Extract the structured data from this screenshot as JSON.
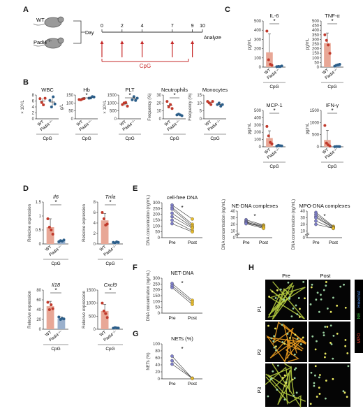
{
  "panel_letters": [
    "A",
    "B",
    "C",
    "D",
    "E",
    "F",
    "G",
    "H"
  ],
  "panelA": {
    "mouse_labels": [
      "WT",
      "Padi4",
      "−/−"
    ],
    "day_label": "Day",
    "days": [
      0,
      2,
      4,
      7,
      9,
      10
    ],
    "analyze_label": "Analyze",
    "treatment": "CpG"
  },
  "group_labels": {
    "wt": "WT",
    "ko": "Padi4",
    "ko_sup": "−/−",
    "treatment": "CpG"
  },
  "sig_mark": "*",
  "colors": {
    "wt": "#e8a796",
    "wt_dot": "#c0392b",
    "ko": "#2d5f8a",
    "ko_bar": "#9ab0cc",
    "pre": "#7d7ec8",
    "post": "#e8bc2a",
    "cpg": "#c62828"
  },
  "chart_data": [
    {
      "id": "B-WBC",
      "type": "scatter",
      "title": "WBC",
      "ylabel": "× 10⁹/L",
      "ylim": [
        0,
        8
      ],
      "yticks": [
        0,
        2,
        4,
        6,
        8
      ],
      "series": [
        {
          "name": "WT",
          "values": [
            6.8,
            5.5,
            4.7,
            6.9
          ]
        },
        {
          "name": "Padi4−/−",
          "values": [
            6.2,
            4.0,
            7.4,
            5.0
          ]
        }
      ]
    },
    {
      "id": "B-Hb",
      "type": "scatter",
      "title": "Hb",
      "ylabel": "g/L",
      "ylim": [
        0,
        150
      ],
      "yticks": [
        0,
        50,
        100,
        150
      ],
      "series": [
        {
          "name": "WT",
          "values": [
            122,
            120,
            125,
            128
          ]
        },
        {
          "name": "Padi4−/−",
          "values": [
            130,
            132,
            140,
            138
          ]
        }
      ]
    },
    {
      "id": "B-PLT",
      "type": "scatter",
      "title": "PLT",
      "ylabel": "× 10⁹/L",
      "ylim": [
        0,
        1500
      ],
      "yticks": [
        0,
        500,
        1000,
        1500
      ],
      "series": [
        {
          "name": "WT",
          "values": [
            900,
            1000,
            1030,
            800
          ]
        },
        {
          "name": "Padi4−/−",
          "values": [
            1200,
            1400,
            1160,
            1300
          ]
        }
      ]
    },
    {
      "id": "B-Neutrophils",
      "type": "scatter",
      "title": "Neutrophils",
      "ylabel": "Frequency (%)",
      "ylim": [
        0,
        30
      ],
      "yticks": [
        0,
        10,
        20,
        30
      ],
      "series": [
        {
          "name": "WT",
          "values": [
            22,
            15,
            18,
            13
          ]
        },
        {
          "name": "Padi4−/−",
          "values": [
            5,
            6,
            5,
            4
          ]
        }
      ]
    },
    {
      "id": "B-Monocytes",
      "type": "scatter",
      "title": "Monocytes",
      "ylabel": "Frequency (%)",
      "ylim": [
        0,
        15
      ],
      "yticks": [
        0,
        5,
        10,
        15
      ],
      "series": [
        {
          "name": "WT",
          "values": [
            11,
            10,
            9,
            11
          ]
        },
        {
          "name": "Padi4−/−",
          "values": [
            9,
            10,
            8,
            9
          ]
        }
      ]
    },
    {
      "id": "C-IL-6",
      "type": "bar",
      "title": "IL-6",
      "ylabel": "pg/mL",
      "ylim": [
        0,
        500
      ],
      "yticks": [
        0,
        100,
        200,
        300,
        400,
        500
      ],
      "series": [
        {
          "name": "WT",
          "mean": 160,
          "sd": 200,
          "values": [
            390,
            80,
            30,
            20
          ]
        },
        {
          "name": "Padi4−/−",
          "mean": 8,
          "sd": 5,
          "values": [
            5,
            8,
            6,
            12
          ]
        }
      ]
    },
    {
      "id": "C-TNF-a",
      "type": "bar",
      "title": "TNF-α",
      "ylabel": "pg/mL",
      "ylim": [
        0,
        500
      ],
      "yticks": [
        0,
        50,
        100,
        150,
        200,
        250,
        300,
        350,
        400,
        450,
        500
      ],
      "series": [
        {
          "name": "WT",
          "mean": 260,
          "sd": 110,
          "values": [
            350,
            290,
            240,
            150
          ]
        },
        {
          "name": "Padi4−/−",
          "mean": 20,
          "sd": 8,
          "values": [
            10,
            20,
            25,
            30
          ]
        }
      ]
    },
    {
      "id": "C-MCP-1",
      "type": "bar",
      "title": "MCP-1",
      "ylabel": "pg/mL",
      "ylim": [
        0,
        500
      ],
      "yticks": [
        0,
        100,
        200,
        300,
        400,
        500
      ],
      "series": [
        {
          "name": "WT",
          "mean": 120,
          "sd": 100,
          "values": [
            280,
            150,
            60,
            40
          ]
        },
        {
          "name": "Padi4−/−",
          "mean": 15,
          "sd": 6,
          "values": [
            10,
            20,
            15,
            12
          ]
        }
      ]
    },
    {
      "id": "C-IFN-g",
      "type": "bar",
      "title": "IFN-γ",
      "ylabel": "pg/mL",
      "ylim": [
        0,
        1500
      ],
      "yticks": [
        0,
        500,
        1000,
        1500
      ],
      "series": [
        {
          "name": "WT",
          "mean": 280,
          "sd": 400,
          "values": [
            880,
            150,
            80,
            30
          ]
        },
        {
          "name": "Padi4−/−",
          "mean": 10,
          "sd": 5,
          "values": [
            5,
            10,
            12,
            8
          ]
        }
      ]
    },
    {
      "id": "D-Il6",
      "type": "bar",
      "title": "Il6",
      "ylabel": "Relecive expression",
      "ylim": [
        0,
        1.5
      ],
      "yticks": [
        0,
        0.5,
        1.0,
        1.5
      ],
      "series": [
        {
          "name": "WT",
          "mean": 0.6,
          "sd": 0.3,
          "values": [
            0.9,
            0.6,
            0.5,
            0.35
          ]
        },
        {
          "name": "Padi4−/−",
          "mean": 0.1,
          "sd": 0.04,
          "values": [
            0.08,
            0.12,
            0.1,
            0.14
          ]
        }
      ]
    },
    {
      "id": "D-Tnfa",
      "type": "bar",
      "title": "Tnfa",
      "ylabel": "Relecive expression",
      "ylim": [
        0,
        8
      ],
      "yticks": [
        0,
        2,
        4,
        6,
        8
      ],
      "series": [
        {
          "name": "WT",
          "mean": 4.5,
          "sd": 1.3,
          "values": [
            6.0,
            4.8,
            3.6,
            3.8
          ]
        },
        {
          "name": "Padi4−/−",
          "mean": 0.3,
          "sd": 0.1,
          "values": [
            0.3,
            0.2,
            0.4,
            0.3
          ]
        }
      ]
    },
    {
      "id": "D-Il18",
      "type": "bar",
      "title": "Il18",
      "ylabel": "Relecive expression",
      "ylim": [
        0,
        80
      ],
      "yticks": [
        0,
        20,
        40,
        60,
        80
      ],
      "series": [
        {
          "name": "WT",
          "mean": 47,
          "sd": 10,
          "values": [
            55,
            40,
            50,
            42
          ]
        },
        {
          "name": "Padi4−/−",
          "mean": 22,
          "sd": 3,
          "values": [
            25,
            20,
            22,
            21
          ]
        }
      ]
    },
    {
      "id": "D-Cxcl9",
      "type": "bar",
      "title": "Cxcl9",
      "ylabel": "Relecive expression",
      "ylim": [
        0,
        1500
      ],
      "yticks": [
        0,
        500,
        1000,
        1500
      ],
      "series": [
        {
          "name": "WT",
          "mean": 700,
          "sd": 250,
          "values": [
            1000,
            700,
            600,
            450
          ]
        },
        {
          "name": "Padi4−/−",
          "mean": 50,
          "sd": 20,
          "values": [
            40,
            60,
            50,
            45
          ]
        }
      ]
    },
    {
      "id": "E-cfDNA",
      "type": "line",
      "title": "cell-free DNA",
      "ylabel": "DNA concentration (ng/mL)",
      "ylim": [
        0,
        300
      ],
      "yticks": [
        0,
        50,
        100,
        150,
        200,
        250,
        300
      ],
      "categories": [
        "Pre",
        "Post"
      ],
      "pairs": [
        [
          280,
          160
        ],
        [
          260,
          115
        ],
        [
          245,
          100
        ],
        [
          210,
          90
        ],
        [
          180,
          80
        ],
        [
          150,
          60
        ],
        [
          120,
          50
        ]
      ]
    },
    {
      "id": "E-NE-DNA",
      "type": "line",
      "title": "NE-DNA complexes",
      "ylabel": "DNA concentration (ng/mL)",
      "ylim": [
        0,
        40
      ],
      "yticks": [
        0,
        10,
        20,
        30,
        40
      ],
      "axis_break": true,
      "categories": [
        "Pre",
        "Post"
      ],
      "pairs": [
        [
          27,
          19
        ],
        [
          25,
          18
        ],
        [
          24,
          15
        ],
        [
          23,
          17
        ],
        [
          22,
          16
        ],
        [
          21,
          14
        ]
      ]
    },
    {
      "id": "E-MPO-DNA",
      "type": "line",
      "title": "MPO-DNA complexes",
      "ylabel": "DNA concentration (ng/mL)",
      "ylim": [
        0,
        40
      ],
      "yticks": [
        0,
        10,
        20,
        30,
        40
      ],
      "axis_break": true,
      "categories": [
        "Pre",
        "Post"
      ],
      "pairs": [
        [
          38,
          17
        ],
        [
          35,
          16
        ],
        [
          32,
          15
        ],
        [
          30,
          15
        ],
        [
          25,
          14
        ],
        [
          20,
          14
        ]
      ]
    },
    {
      "id": "F-NET-DNA",
      "type": "line",
      "title": "NET-DNA",
      "ylabel": "DNA concentration (ng/mL)",
      "ylim": [
        0,
        300
      ],
      "yticks": [
        0,
        50,
        100,
        150,
        200,
        250,
        300
      ],
      "categories": [
        "Pre",
        "Post"
      ],
      "pairs": [
        [
          255,
          110
        ],
        [
          235,
          95
        ],
        [
          220,
          75
        ]
      ]
    },
    {
      "id": "G-NETs",
      "type": "line",
      "title": "NETs (%)",
      "ylabel": "NETs (%)",
      "ylim": [
        0,
        100
      ],
      "yticks": [
        0,
        20,
        40,
        60,
        80,
        100
      ],
      "categories": [
        "Pre",
        "Post"
      ],
      "pairs": [
        [
          65,
          1
        ],
        [
          52,
          2
        ],
        [
          42,
          1
        ]
      ]
    }
  ],
  "panelH": {
    "columns": [
      "Pre",
      "Post"
    ],
    "rows": [
      "P1",
      "P2",
      "P3"
    ],
    "legend": [
      {
        "text": "Hoechst",
        "color": "#4a8ef0"
      },
      {
        "text": "NE",
        "color": "#3fbf3f"
      },
      {
        "text": "MPO",
        "color": "#e03a2a"
      }
    ]
  }
}
